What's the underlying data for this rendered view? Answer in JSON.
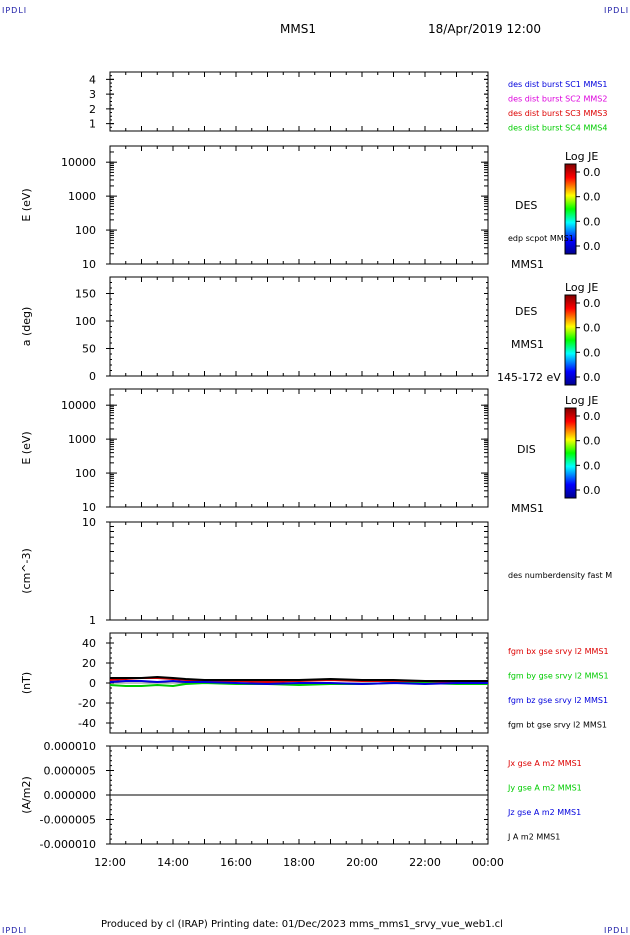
{
  "header": {
    "spacecraft": "MMS1",
    "date": "18/Apr/2019 12:00",
    "corner_left": "IPDLI",
    "corner_right": "IPDLI",
    "corner_bottom_left": "IPDLI",
    "corner_bottom_right": "IPDLI"
  },
  "footer": {
    "text": "Produced by cl (IRAP)   Printing date: 01/Dec/2023   mms_mms1_srvy_vue_web1.cl"
  },
  "colors": {
    "blue": "#0000dd",
    "magenta": "#dd00dd",
    "red": "#dd0000",
    "green": "#00cc00",
    "black": "#000000"
  },
  "chart_data": [
    {
      "type": "line",
      "panel": "burst",
      "ylim": [
        0.5,
        4.5
      ],
      "y_ticks": [
        "4",
        "3",
        "2",
        "1"
      ],
      "series": [
        {
          "name": "des dist burst SC1 MMS1",
          "color": "#0000dd",
          "values": []
        },
        {
          "name": "des dist burst SC2 MMS2",
          "color": "#dd00dd",
          "values": []
        },
        {
          "name": "des dist burst SC3 MMS3",
          "color": "#dd0000",
          "values": []
        },
        {
          "name": "des dist burst SC4 MMS4",
          "color": "#00cc00",
          "values": []
        }
      ]
    },
    {
      "type": "heatmap",
      "panel": "des_energy",
      "ylabel": "E (eV)",
      "y_scale": "log",
      "ylim": [
        10,
        30000
      ],
      "y_ticks": [
        "10000",
        "1000",
        "100",
        "10"
      ],
      "colorbar": {
        "title": "Log JE",
        "ticks": [
          "0.0",
          "0.0",
          "0.0",
          "0.0"
        ]
      },
      "labels": [
        "DES",
        "edp scpot MMS1",
        "MMS1"
      ]
    },
    {
      "type": "heatmap",
      "panel": "des_pitch",
      "ylabel": "a (deg)",
      "ylim": [
        0,
        180
      ],
      "y_ticks": [
        "150",
        "100",
        "50",
        "0"
      ],
      "colorbar": {
        "title": "Log JE",
        "ticks": [
          "0.0",
          "0.0",
          "0.0",
          "0.0"
        ]
      },
      "labels": [
        "DES",
        "MMS1",
        "145-172 eV"
      ]
    },
    {
      "type": "heatmap",
      "panel": "dis_energy",
      "ylabel": "E (eV)",
      "y_scale": "log",
      "ylim": [
        10,
        30000
      ],
      "y_ticks": [
        "10000",
        "1000",
        "100",
        "10"
      ],
      "colorbar": {
        "title": "Log JE",
        "ticks": [
          "0.0",
          "0.0",
          "0.0",
          "0.0"
        ]
      },
      "labels": [
        "DIS",
        "MMS1"
      ]
    },
    {
      "type": "line",
      "panel": "density",
      "ylabel": "(cm^-3)",
      "y_scale": "log",
      "ylim": [
        1,
        10
      ],
      "y_ticks": [
        "10",
        "1"
      ],
      "series": [
        {
          "name": "des numberdensity fast M",
          "color": "#000000",
          "values": []
        }
      ]
    },
    {
      "type": "line",
      "panel": "fgm",
      "ylabel": "(nT)",
      "ylim": [
        -50,
        50
      ],
      "y_ticks": [
        "40",
        "20",
        "0",
        "-20",
        "-40"
      ],
      "series": [
        {
          "name": "fgm bx gse srvy l2 MMS1",
          "color": "#dd0000",
          "x": [
            12,
            12.5,
            13,
            13.5,
            14,
            14.4,
            15,
            16,
            17,
            18,
            19,
            20,
            21,
            22,
            23,
            24
          ],
          "values": [
            3,
            4,
            5,
            5,
            4,
            3,
            2,
            2,
            1,
            2,
            3,
            2,
            2,
            1,
            1,
            1
          ]
        },
        {
          "name": "fgm by gse srvy l2 MMS1",
          "color": "#00cc00",
          "x": [
            12,
            12.5,
            13,
            13.5,
            14,
            14.4,
            15,
            16,
            17,
            18,
            19,
            20,
            21,
            22,
            23,
            24
          ],
          "values": [
            -2,
            -3,
            -3,
            -2,
            -3,
            -1,
            0,
            -1,
            -1,
            -2,
            -1,
            -1,
            0,
            0,
            -1,
            -1
          ]
        },
        {
          "name": "fgm bz gse srvy l2 MMS1",
          "color": "#0000dd",
          "x": [
            12,
            12.5,
            13,
            13.5,
            14,
            14.4,
            15,
            16,
            17,
            18,
            19,
            20,
            21,
            22,
            23,
            24
          ],
          "values": [
            1,
            2,
            2,
            1,
            2,
            1,
            1,
            0,
            -1,
            0,
            0,
            -1,
            0,
            -1,
            0,
            0
          ]
        },
        {
          "name": "fgm bt gse srvy l2 MMS1",
          "color": "#000000",
          "x": [
            12,
            12.5,
            13,
            13.5,
            14,
            14.4,
            15,
            16,
            17,
            18,
            19,
            20,
            21,
            22,
            23,
            24
          ],
          "values": [
            5,
            5,
            5,
            6,
            5,
            4,
            3,
            3,
            3,
            3,
            4,
            3,
            3,
            2,
            2,
            2
          ]
        }
      ]
    },
    {
      "type": "line",
      "panel": "current",
      "ylabel": "(A/m2)",
      "ylim": [
        -1e-05,
        1e-05
      ],
      "y_ticks": [
        "0.000010",
        "0.000005",
        "0.000000",
        "-0.000005",
        "-0.000010"
      ],
      "xlabel_ticks": [
        "12:00",
        "14:00",
        "16:00",
        "18:00",
        "20:00",
        "22:00",
        "00:00"
      ],
      "series": [
        {
          "name": "Jx gse A m2 MMS1",
          "color": "#dd0000",
          "x": [
            12,
            24
          ],
          "values": [
            0,
            0
          ]
        },
        {
          "name": "Jy gse A m2 MMS1",
          "color": "#00cc00",
          "x": [
            12,
            24
          ],
          "values": [
            0,
            0
          ]
        },
        {
          "name": "Jz gse A m2 MMS1",
          "color": "#0000dd",
          "x": [
            12,
            24
          ],
          "values": [
            0,
            0
          ]
        },
        {
          "name": "J A m2 MMS1",
          "color": "#000000",
          "x": [
            12,
            24
          ],
          "values": [
            0,
            0
          ]
        }
      ]
    }
  ]
}
